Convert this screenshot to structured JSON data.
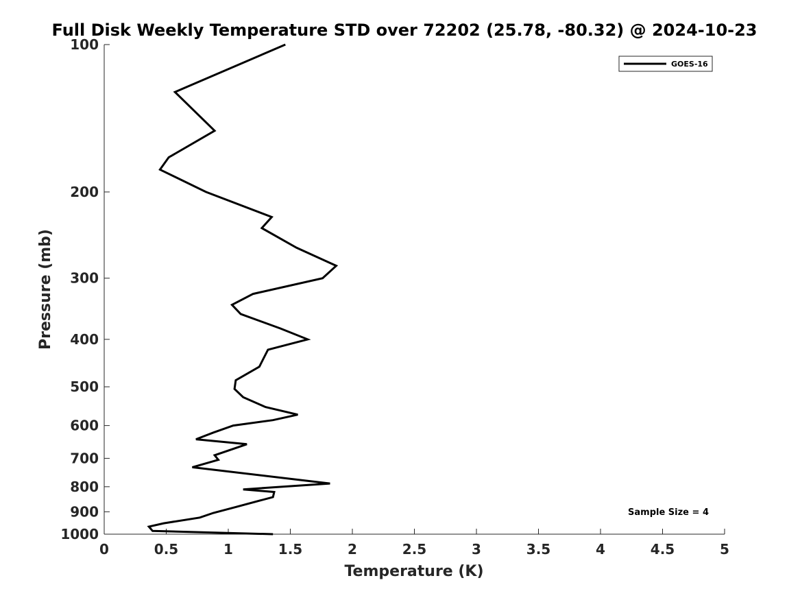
{
  "chart_data": {
    "type": "line",
    "title": "Full Disk Weekly Temperature STD over 72202 (25.78, -80.32) @ 2024-10-23",
    "xlabel": "Temperature (K)",
    "ylabel": "Pressure (mb)",
    "xlim": [
      0,
      5
    ],
    "ylim": [
      100,
      1000
    ],
    "y_scale": "log",
    "y_reversed": true,
    "grid": false,
    "legend_position": "top-right",
    "x_ticks": [
      0,
      0.5,
      1,
      1.5,
      2,
      2.5,
      3,
      3.5,
      4,
      4.5,
      5
    ],
    "x_tick_labels": [
      "0",
      "0.5",
      "1",
      "1.5",
      "2",
      "2.5",
      "3",
      "3.5",
      "4",
      "4.5",
      "5"
    ],
    "y_ticks": [
      100,
      200,
      300,
      400,
      500,
      600,
      700,
      800,
      900,
      1000
    ],
    "y_tick_labels": [
      "100",
      "200",
      "300",
      "400",
      "500",
      "600",
      "700",
      "800",
      "900",
      "1000"
    ],
    "series": [
      {
        "name": "GOES-16",
        "color": "#000000",
        "points": [
          [
            1.46,
            100
          ],
          [
            0.57,
            125
          ],
          [
            0.89,
            150
          ],
          [
            0.52,
            170
          ],
          [
            0.45,
            180
          ],
          [
            0.82,
            200
          ],
          [
            1.35,
            225
          ],
          [
            1.27,
            237
          ],
          [
            1.55,
            260
          ],
          [
            1.87,
            283
          ],
          [
            1.76,
            300
          ],
          [
            1.2,
            323
          ],
          [
            1.03,
            340
          ],
          [
            1.1,
            355
          ],
          [
            1.42,
            380
          ],
          [
            1.64,
            400
          ],
          [
            1.32,
            420
          ],
          [
            1.25,
            455
          ],
          [
            1.06,
            485
          ],
          [
            1.05,
            505
          ],
          [
            1.12,
            525
          ],
          [
            1.3,
            550
          ],
          [
            1.56,
            570
          ],
          [
            1.36,
            585
          ],
          [
            1.04,
            600
          ],
          [
            0.88,
            620
          ],
          [
            0.74,
            640
          ],
          [
            1.15,
            655
          ],
          [
            0.89,
            690
          ],
          [
            0.92,
            705
          ],
          [
            0.71,
            730
          ],
          [
            1.82,
            788
          ],
          [
            1.12,
            810
          ],
          [
            1.37,
            820
          ],
          [
            1.36,
            840
          ],
          [
            1.06,
            880
          ],
          [
            0.88,
            905
          ],
          [
            0.77,
            925
          ],
          [
            0.48,
            950
          ],
          [
            0.36,
            965
          ],
          [
            0.39,
            985
          ],
          [
            1.36,
            1000
          ]
        ]
      }
    ],
    "annotation": "Sample Size = 4"
  }
}
